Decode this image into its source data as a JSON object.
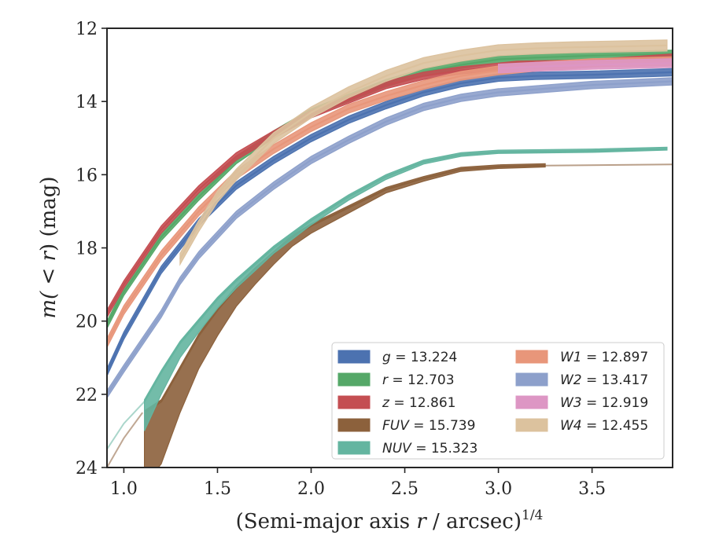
{
  "chart_data": {
    "type": "line",
    "xlabel_main": "(Semi-major axis ",
    "xlabel_var": "r",
    "xlabel_tail": " / arcsec)",
    "xlabel_exp": "1/4",
    "ylabel_main": "m(",
    "ylabel_lt": " < ",
    "ylabel_var": "r",
    "ylabel_tail": ") (mag)",
    "xlim": [
      0.91,
      3.93
    ],
    "ylim": [
      24,
      12
    ],
    "y_inverted": true,
    "grid": false,
    "legend_position": "lower-right",
    "x_ticks": [
      {
        "value": 1.0,
        "label": "1.0"
      },
      {
        "value": 1.5,
        "label": "1.5"
      },
      {
        "value": 2.0,
        "label": "2.0"
      },
      {
        "value": 2.5,
        "label": "2.5"
      },
      {
        "value": 3.0,
        "label": "3.0"
      },
      {
        "value": 3.5,
        "label": "3.5"
      }
    ],
    "y_ticks": [
      {
        "value": 12,
        "label": "12"
      },
      {
        "value": 14,
        "label": "14"
      },
      {
        "value": 16,
        "label": "16"
      },
      {
        "value": 18,
        "label": "18"
      },
      {
        "value": 20,
        "label": "20"
      },
      {
        "value": 22,
        "label": "22"
      },
      {
        "value": 24,
        "label": "24"
      }
    ],
    "series": [
      {
        "name": "g",
        "legend_value": " = 13.224",
        "color": "#4c72b0",
        "x": [
          0.91,
          1.0,
          1.2,
          1.4,
          1.6,
          1.8,
          2.0,
          2.2,
          2.4,
          2.6,
          2.8,
          3.0,
          3.2,
          3.5,
          3.93
        ],
        "y": [
          21.4,
          20.4,
          18.6,
          17.3,
          16.3,
          15.6,
          15.0,
          14.5,
          14.1,
          13.75,
          13.5,
          13.35,
          13.3,
          13.27,
          13.2
        ],
        "band": 0.1
      },
      {
        "name": "r",
        "legend_value": " = 12.703",
        "color": "#55a868",
        "x": [
          0.91,
          1.0,
          1.2,
          1.4,
          1.6,
          1.8,
          2.0,
          2.2,
          2.4,
          2.6,
          2.8,
          3.0,
          3.2,
          3.5,
          3.93
        ],
        "y": [
          20.1,
          19.2,
          17.7,
          16.6,
          15.6,
          14.9,
          14.3,
          13.9,
          13.5,
          13.2,
          13.0,
          12.85,
          12.8,
          12.75,
          12.7
        ],
        "band": 0.1
      },
      {
        "name": "z",
        "legend_value": " = 12.861",
        "color": "#c44e52",
        "x": [
          0.91,
          1.0,
          1.2,
          1.4,
          1.6,
          1.8,
          2.0,
          2.2,
          2.4,
          2.6,
          2.8,
          3.0,
          3.1,
          3.3,
          3.5,
          3.93
        ],
        "y": [
          19.8,
          19.0,
          17.5,
          16.4,
          15.5,
          14.9,
          14.35,
          13.95,
          13.55,
          13.3,
          13.15,
          13.05,
          13.0,
          12.98,
          12.95,
          12.8
        ],
        "band": 0.1
      },
      {
        "name": "FUV",
        "legend_value": " = 15.739",
        "color": "#8c613c",
        "x": [
          1.11,
          1.2,
          1.3,
          1.4,
          1.5,
          1.6,
          1.7,
          1.8,
          1.9,
          2.0,
          2.2,
          2.4,
          2.6,
          2.8,
          3.0,
          3.25
        ],
        "y": [
          22.5,
          22.2,
          21.3,
          20.4,
          19.7,
          19.1,
          18.6,
          18.15,
          17.7,
          17.4,
          16.9,
          16.4,
          16.1,
          15.85,
          15.78,
          15.75
        ],
        "band_upper": [
          2.0,
          1.7,
          1.2,
          0.9,
          0.7,
          0.5,
          0.4,
          0.3,
          0.25,
          0.2,
          0.15,
          0.1,
          0.08,
          0.06,
          0.05,
          0.04
        ],
        "ext_x": [
          0.91,
          1.0,
          1.1
        ],
        "ext_y": [
          24.0,
          23.2,
          22.5
        ],
        "tail_x": [
          3.25,
          3.93
        ],
        "tail_y": [
          15.75,
          15.72
        ]
      },
      {
        "name": "NUV",
        "legend_value": " = 15.323",
        "color": "#64b5a0",
        "x": [
          1.11,
          1.2,
          1.3,
          1.4,
          1.5,
          1.6,
          1.8,
          2.0,
          2.2,
          2.4,
          2.6,
          2.8,
          3.0,
          3.5,
          3.9
        ],
        "y": [
          22.2,
          21.4,
          20.6,
          20.0,
          19.4,
          18.9,
          18.0,
          17.25,
          16.6,
          16.05,
          15.65,
          15.45,
          15.38,
          15.35,
          15.3
        ],
        "band_upper": [
          0.8,
          0.6,
          0.4,
          0.3,
          0.25,
          0.2,
          0.15,
          0.12,
          0.1,
          0.08,
          0.06,
          0.05,
          0.04,
          0.04,
          0.03
        ],
        "ext_x": [
          0.91,
          1.0,
          1.11
        ],
        "ext_y": [
          23.5,
          22.8,
          22.2
        ]
      },
      {
        "name": "W1",
        "legend_value": " = 12.897",
        "color": "#e8967a",
        "x": [
          0.91,
          1.0,
          1.2,
          1.4,
          1.6,
          1.8,
          2.0,
          2.2,
          2.4,
          2.6,
          2.8,
          3.0,
          3.2,
          3.5,
          3.93
        ],
        "y": [
          20.6,
          19.7,
          18.2,
          17.0,
          16.0,
          15.3,
          14.7,
          14.2,
          13.85,
          13.55,
          13.3,
          13.15,
          13.05,
          12.95,
          12.9
        ],
        "band": 0.12
      },
      {
        "name": "W2",
        "legend_value": " = 13.417",
        "color": "#8da0cb",
        "x": [
          0.91,
          1.0,
          1.2,
          1.3,
          1.4,
          1.6,
          1.8,
          2.0,
          2.2,
          2.4,
          2.6,
          2.8,
          3.0,
          3.5,
          3.93
        ],
        "y": [
          22.0,
          21.3,
          19.8,
          18.9,
          18.2,
          17.1,
          16.3,
          15.6,
          15.05,
          14.55,
          14.15,
          13.9,
          13.75,
          13.55,
          13.45
        ],
        "band": 0.1
      },
      {
        "name": "W3",
        "legend_value": " = 12.919",
        "color": "#dd96c4",
        "x": [
          3.0,
          3.2,
          3.5,
          3.93
        ],
        "y": [
          13.1,
          13.05,
          13.0,
          12.95
        ],
        "band": 0.12
      },
      {
        "name": "W4",
        "legend_value": " = 12.455",
        "color": "#dcc29e",
        "x": [
          1.3,
          1.4,
          1.5,
          1.6,
          1.8,
          2.0,
          2.2,
          2.4,
          2.6,
          2.8,
          3.0,
          3.2,
          3.4,
          3.6,
          3.9
        ],
        "y": [
          18.3,
          17.4,
          16.6,
          16.0,
          15.0,
          14.3,
          13.75,
          13.3,
          12.95,
          12.75,
          12.6,
          12.55,
          12.52,
          12.5,
          12.47
        ],
        "band": 0.15
      }
    ]
  }
}
